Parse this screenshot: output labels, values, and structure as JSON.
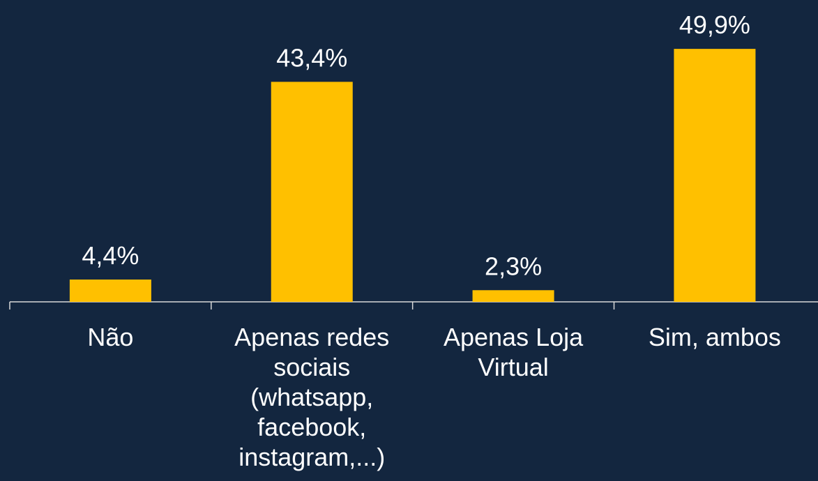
{
  "chart_data": {
    "type": "bar",
    "categories": [
      "Não",
      "Apenas redes sociais (whatsapp, facebook, instagram,...)",
      "Apenas Loja Virtual",
      "Sim, ambos"
    ],
    "values": [
      4.4,
      43.4,
      2.3,
      49.9
    ],
    "value_labels": [
      "4,4%",
      "43,4%",
      "2,3%",
      "49,9%"
    ],
    "color": "#ffc000",
    "ylim": [
      0,
      50
    ]
  }
}
